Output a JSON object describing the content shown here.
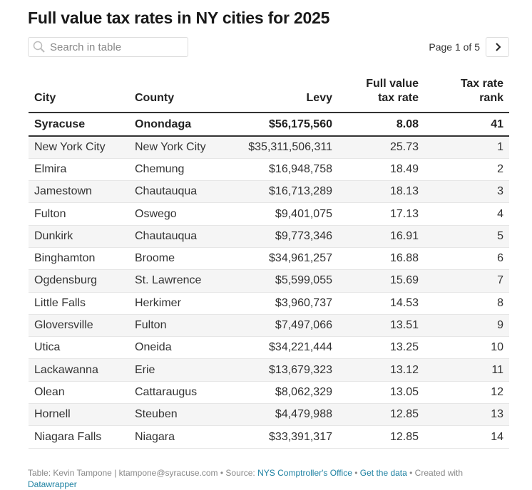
{
  "title": "Full value tax rates in NY cities for 2025",
  "search": {
    "placeholder": "Search in table"
  },
  "pager": {
    "label": "Page 1 of 5"
  },
  "columns": [
    "City",
    "County",
    "Levy",
    "Full value\ntax rate",
    "Tax rate\nrank"
  ],
  "highlight": [
    "Syracuse",
    "Onondaga",
    "$56,175,560",
    "8.08",
    "41"
  ],
  "rows": [
    [
      "New York City",
      "New York City",
      "$35,311,506,311",
      "25.73",
      "1"
    ],
    [
      "Elmira",
      "Chemung",
      "$16,948,758",
      "18.49",
      "2"
    ],
    [
      "Jamestown",
      "Chautauqua",
      "$16,713,289",
      "18.13",
      "3"
    ],
    [
      "Fulton",
      "Oswego",
      "$9,401,075",
      "17.13",
      "4"
    ],
    [
      "Dunkirk",
      "Chautauqua",
      "$9,773,346",
      "16.91",
      "5"
    ],
    [
      "Binghamton",
      "Broome",
      "$34,961,257",
      "16.88",
      "6"
    ],
    [
      "Ogdensburg",
      "St. Lawrence",
      "$5,599,055",
      "15.69",
      "7"
    ],
    [
      "Little Falls",
      "Herkimer",
      "$3,960,737",
      "14.53",
      "8"
    ],
    [
      "Gloversville",
      "Fulton",
      "$7,497,066",
      "13.51",
      "9"
    ],
    [
      "Utica",
      "Oneida",
      "$34,221,444",
      "13.25",
      "10"
    ],
    [
      "Lackawanna",
      "Erie",
      "$13,679,323",
      "13.12",
      "11"
    ],
    [
      "Olean",
      "Cattaraugus",
      "$8,062,329",
      "13.05",
      "12"
    ],
    [
      "Hornell",
      "Steuben",
      "$4,479,988",
      "12.85",
      "13"
    ],
    [
      "Niagara Falls",
      "Niagara",
      "$33,391,317",
      "12.85",
      "14"
    ]
  ],
  "footer": {
    "credit": "Table: Kevin Tampone | ktampone@syracuse.com • Source: ",
    "source": "NYS Comptroller's Office",
    "sep1": " • ",
    "get_data": "Get the data",
    "sep2": " • Created with ",
    "datawrapper": "Datawrapper"
  },
  "colors": {
    "link": "#1d81a2",
    "stripe": "#f5f5f5"
  }
}
